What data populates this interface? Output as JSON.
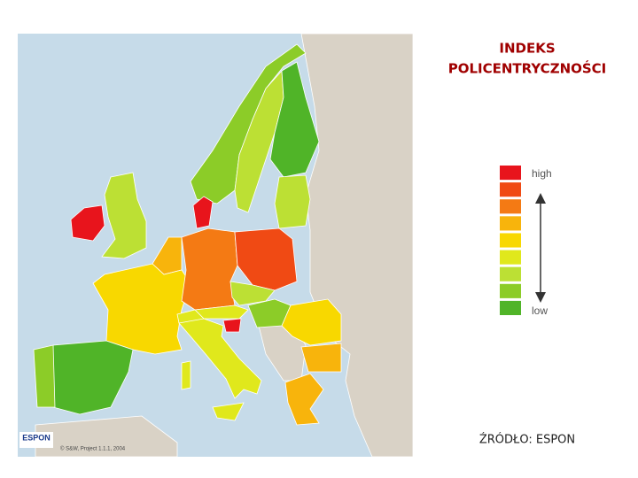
{
  "title": [
    "INDEKS",
    "POLICENTRYCZNOŚCI"
  ],
  "legend": {
    "high": "high",
    "low": "low",
    "colors": [
      "#e8141c",
      "#f04a14",
      "#f47a14",
      "#f8b40c",
      "#f8d800",
      "#e0e81c",
      "#bce034",
      "#8ccc28",
      "#50b428"
    ]
  },
  "map": {
    "logo": "ESPON",
    "credit": "© S&W, Project 1.1.1, 2004"
  },
  "source": "ŹRÓDŁO: ESPON"
}
